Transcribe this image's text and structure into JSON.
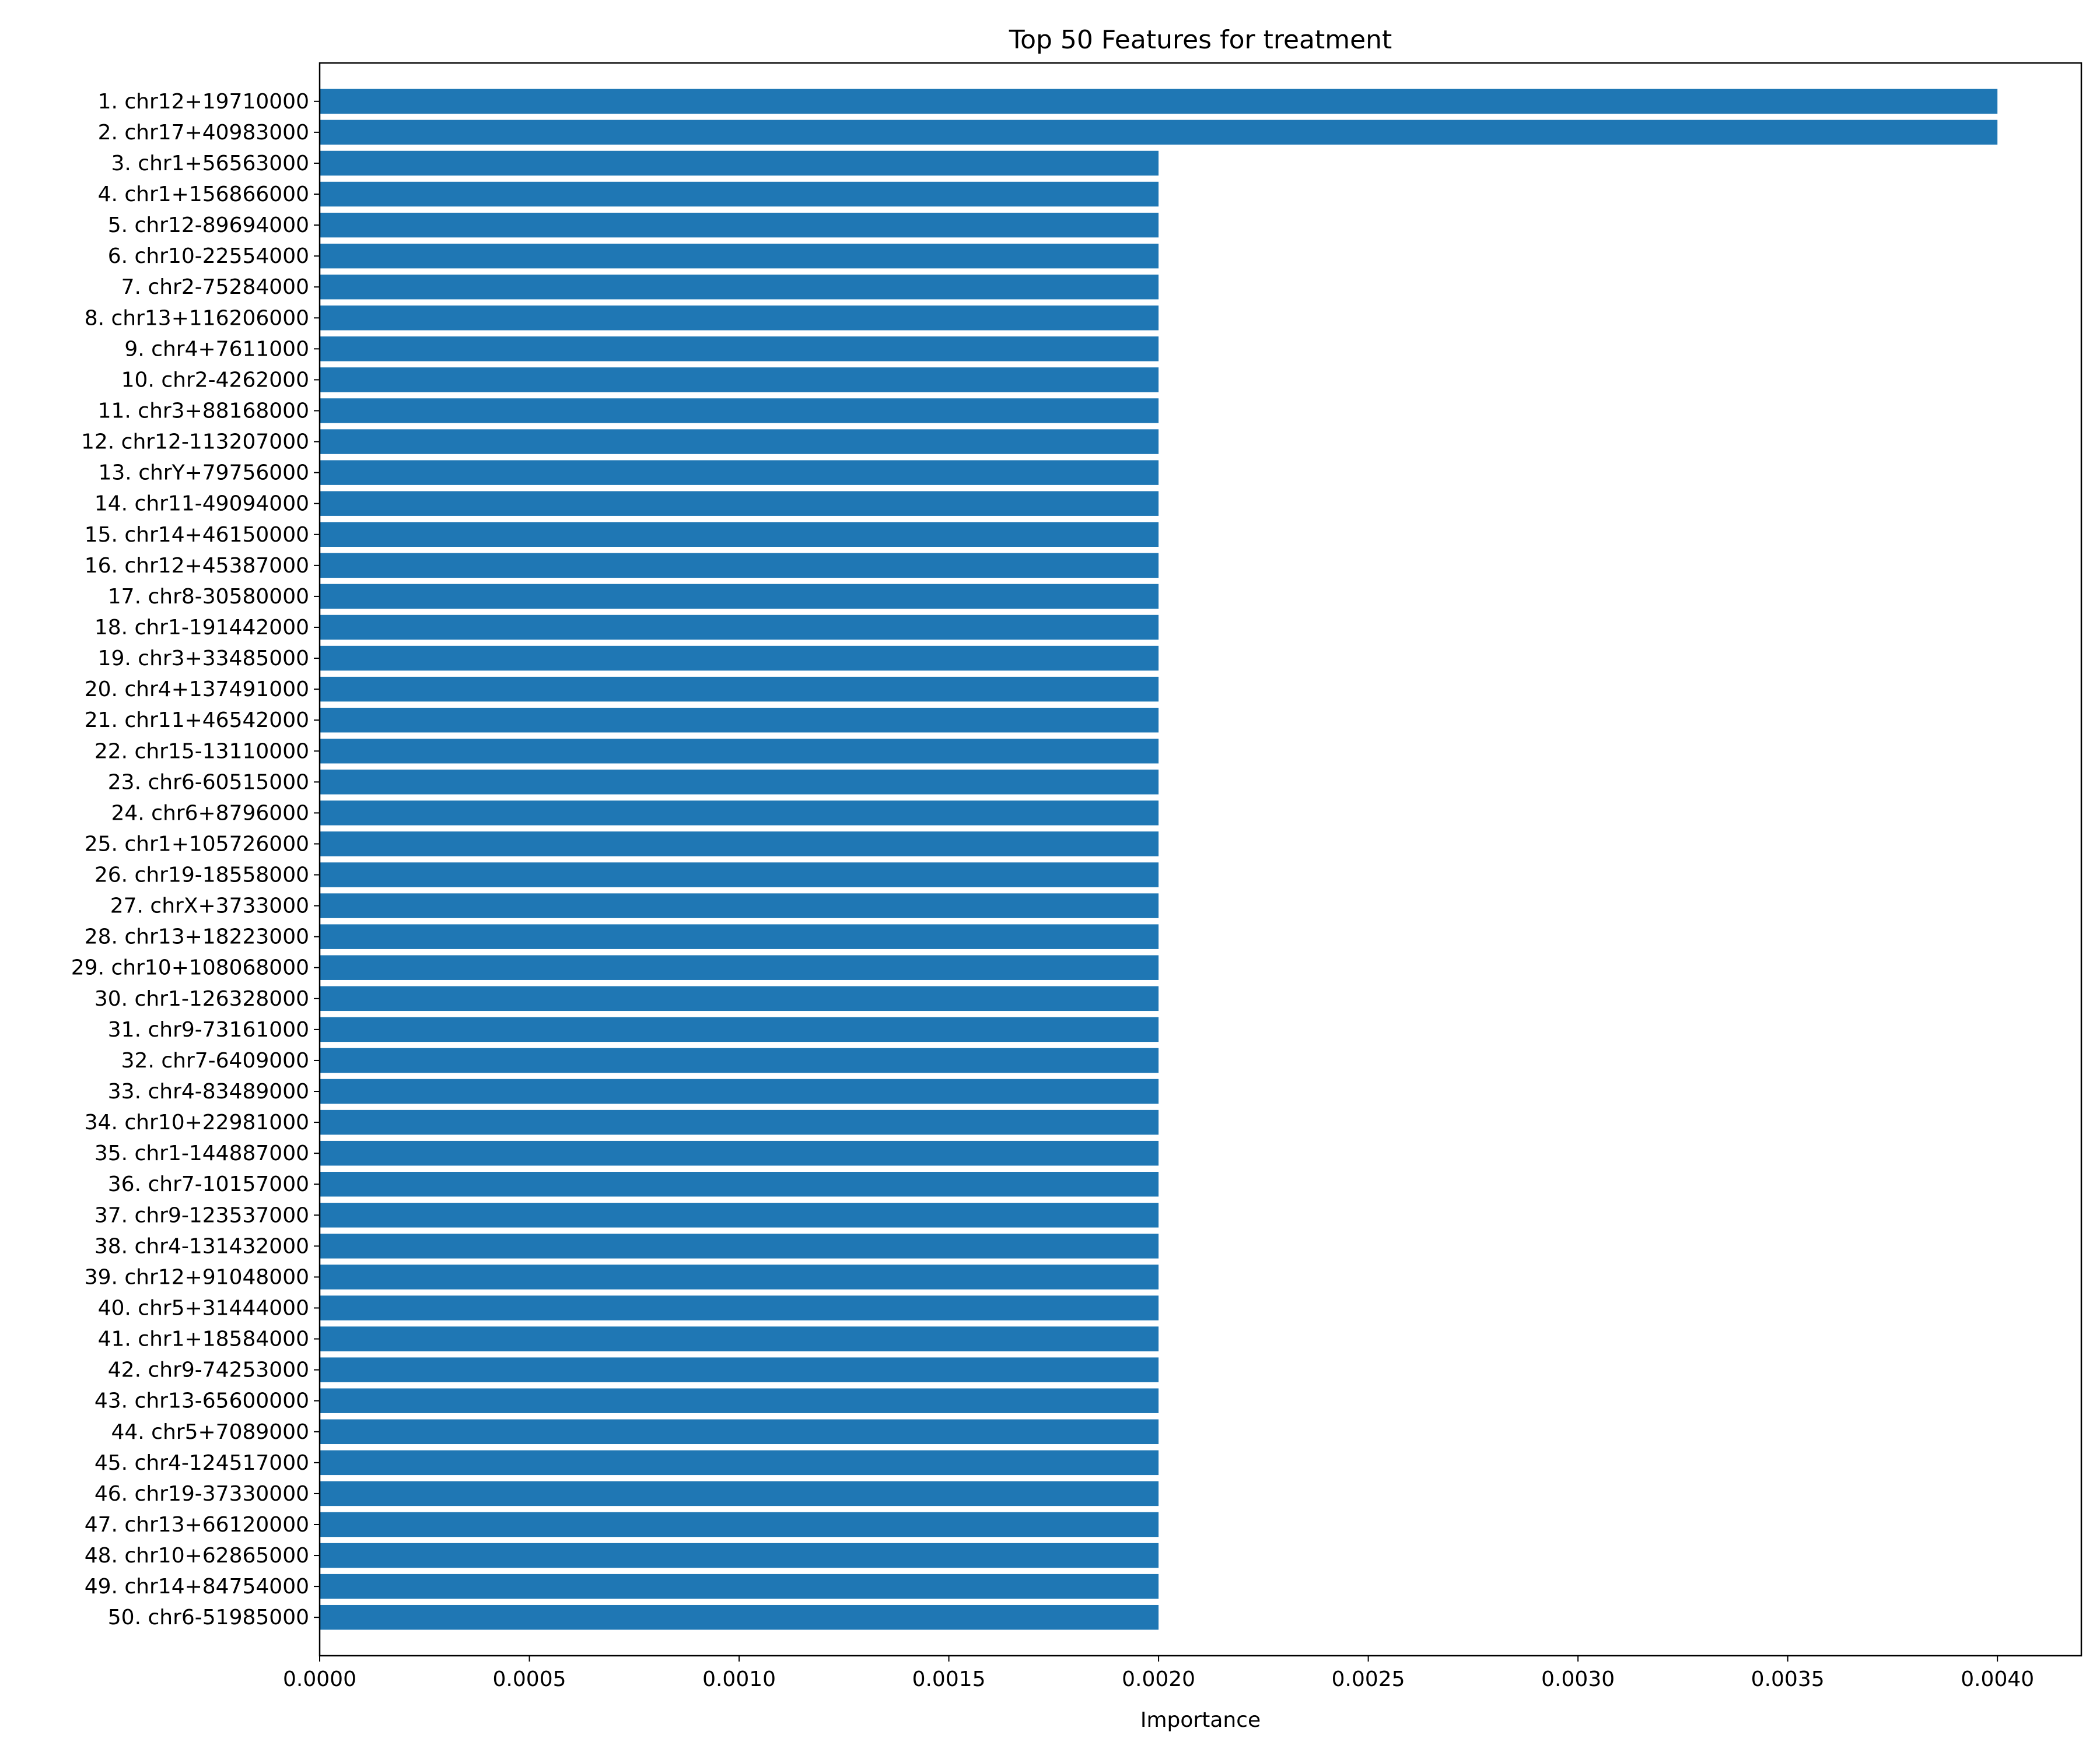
{
  "chart_data": {
    "type": "bar",
    "orientation": "horizontal",
    "title": "Top 50 Features for treatment",
    "xlabel": "Importance",
    "ylabel": "",
    "xlim": [
      0,
      0.0042
    ],
    "xticks": [
      "0.0000",
      "0.0005",
      "0.0010",
      "0.0015",
      "0.0020",
      "0.0025",
      "0.0030",
      "0.0035",
      "0.0040"
    ],
    "grid": false,
    "bar_color": "#1f77b4",
    "categories": [
      "1. chr12+19710000",
      "2. chr17+40983000",
      "3. chr1+56563000",
      "4. chr1+156866000",
      "5. chr12-89694000",
      "6. chr10-22554000",
      "7. chr2-75284000",
      "8. chr13+116206000",
      "9. chr4+7611000",
      "10. chr2-4262000",
      "11. chr3+88168000",
      "12. chr12-113207000",
      "13. chrY+79756000",
      "14. chr11-49094000",
      "15. chr14+46150000",
      "16. chr12+45387000",
      "17. chr8-30580000",
      "18. chr1-191442000",
      "19. chr3+33485000",
      "20. chr4+137491000",
      "21. chr11+46542000",
      "22. chr15-13110000",
      "23. chr6-60515000",
      "24. chr6+8796000",
      "25. chr1+105726000",
      "26. chr19-18558000",
      "27. chrX+3733000",
      "28. chr13+18223000",
      "29. chr10+108068000",
      "30. chr1-126328000",
      "31. chr9-73161000",
      "32. chr7-6409000",
      "33. chr4-83489000",
      "34. chr10+22981000",
      "35. chr1-144887000",
      "36. chr7-10157000",
      "37. chr9-123537000",
      "38. chr4-131432000",
      "39. chr12+91048000",
      "40. chr5+31444000",
      "41. chr1+18584000",
      "42. chr9-74253000",
      "43. chr13-65600000",
      "44. chr5+7089000",
      "45. chr4-124517000",
      "46. chr19-37330000",
      "47. chr13+66120000",
      "48. chr10+62865000",
      "49. chr14+84754000",
      "50. chr6-51985000"
    ],
    "values": [
      0.004,
      0.004,
      0.002,
      0.002,
      0.002,
      0.002,
      0.002,
      0.002,
      0.002,
      0.002,
      0.002,
      0.002,
      0.002,
      0.002,
      0.002,
      0.002,
      0.002,
      0.002,
      0.002,
      0.002,
      0.002,
      0.002,
      0.002,
      0.002,
      0.002,
      0.002,
      0.002,
      0.002,
      0.002,
      0.002,
      0.002,
      0.002,
      0.002,
      0.002,
      0.002,
      0.002,
      0.002,
      0.002,
      0.002,
      0.002,
      0.002,
      0.002,
      0.002,
      0.002,
      0.002,
      0.002,
      0.002,
      0.002,
      0.002,
      0.002
    ]
  }
}
